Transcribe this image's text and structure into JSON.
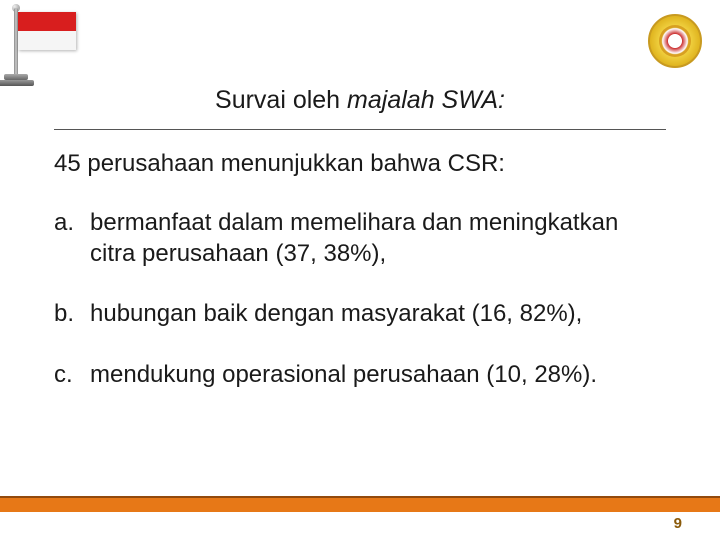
{
  "title": {
    "plain": "Survai  oleh  ",
    "italic": "majalah SWA:"
  },
  "intro": "45 perusahaan menunjukkan  bahwa  CSR:",
  "items": [
    {
      "marker": "a.",
      "text": "bermanfaat  dalam  memelihara  dan meningkatkan  citra perusahaan  (37, 38%),"
    },
    {
      "marker": "b.",
      "text": "hubungan  baik  dengan  masyarakat (16, 82%),"
    },
    {
      "marker": "c.",
      "text": "mendukung operasional perusahaan (10, 28%)."
    }
  ],
  "page_number": "9",
  "colors": {
    "footer_bar": "#e77817",
    "footer_border": "#924a0d",
    "page_num": "#8a5a0a",
    "flag_red": "#d81e1e",
    "text": "#1a1a1a"
  }
}
